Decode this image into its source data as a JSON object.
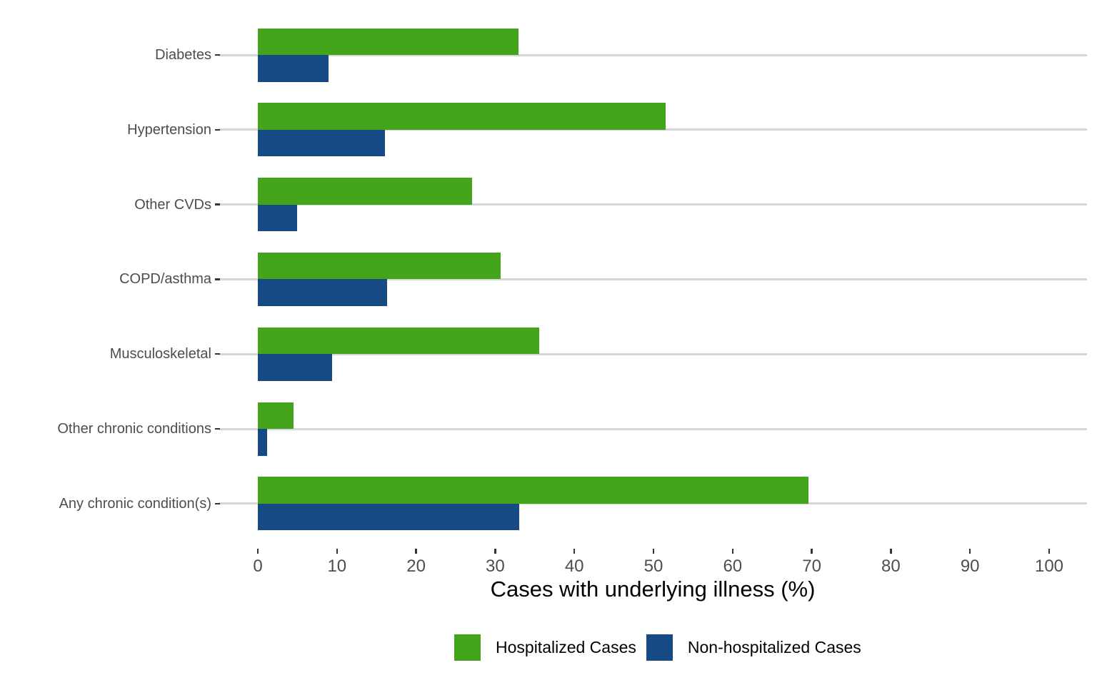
{
  "chart_data": {
    "type": "bar",
    "orientation": "horizontal",
    "title": "",
    "xlabel": "Cases with underlying illness (%)",
    "ylabel": "",
    "categories": [
      "Diabetes",
      "Hypertension",
      "Other CVDs",
      "COPD/asthma",
      "Musculoskeletal",
      "Other chronic conditions",
      "Any chronic condition(s)"
    ],
    "series": [
      {
        "name": "Hospitalized Cases",
        "color": "#44a41c",
        "values": [
          32.9,
          51.5,
          27.1,
          30.7,
          35.6,
          4.5,
          69.6
        ]
      },
      {
        "name": "Non-hospitalized Cases",
        "color": "#164a84",
        "values": [
          8.9,
          16.1,
          5.0,
          16.3,
          9.4,
          1.2,
          33.0
        ]
      }
    ],
    "x_axis": {
      "ticks": [
        0,
        10,
        20,
        30,
        40,
        50,
        60,
        70,
        80,
        90,
        100
      ],
      "range": [
        0,
        100
      ]
    },
    "grid": "horizontal category gridlines only",
    "legend_position": "bottom",
    "colors": {
      "background": "#ffffff",
      "gridline": "#d6d6d6",
      "tick_mark": "#333333",
      "axis_text": "#4d4d4d",
      "axis_title_text": "#000000"
    }
  }
}
